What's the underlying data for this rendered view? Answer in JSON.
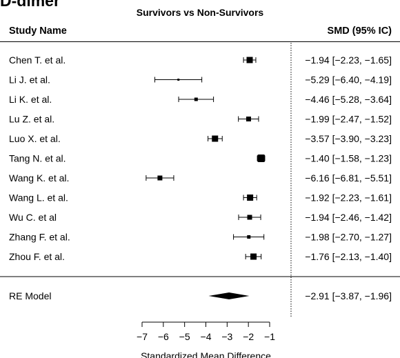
{
  "header": {
    "title": "D-dimer",
    "subtitle": "Survivors vs Non-Survivors",
    "col_study": "Study Name",
    "col_effect": "SMD (95% IC)"
  },
  "chart_data": {
    "type": "forest",
    "title": "D-dimer",
    "subtitle": "Survivors vs Non-Survivors",
    "xlabel": "Standardized Mean Difference",
    "xlim": [
      -7,
      -1
    ],
    "xticks": [
      -7,
      -6,
      -5,
      -4,
      -3,
      -2,
      -1
    ],
    "xtick_labels": [
      "−7",
      "−6",
      "−5",
      "−4",
      "−3",
      "−2",
      "−1"
    ],
    "reference_line": 0,
    "studies": [
      {
        "name": "Chen T. et al.",
        "smd": -1.94,
        "lo": -2.23,
        "hi": -1.65,
        "weight_rank": 4,
        "label": "−1.94 [−2.23, −1.65]"
      },
      {
        "name": "Li J. et al.",
        "smd": -5.29,
        "lo": -6.4,
        "hi": -4.19,
        "weight_rank": 1,
        "label": "−5.29 [−6.40, −4.19]"
      },
      {
        "name": "Li K. et al.",
        "smd": -4.46,
        "lo": -5.28,
        "hi": -3.64,
        "weight_rank": 2,
        "label": "−4.46 [−5.28, −3.64]"
      },
      {
        "name": "Lu Z. et al.",
        "smd": -1.99,
        "lo": -2.47,
        "hi": -1.52,
        "weight_rank": 3,
        "label": "−1.99 [−2.47, −1.52]"
      },
      {
        "name": "Luo X. et al.",
        "smd": -3.57,
        "lo": -3.9,
        "hi": -3.23,
        "weight_rank": 4,
        "label": "−3.57 [−3.90, −3.23]"
      },
      {
        "name": "Tang N. et al.",
        "smd": -1.4,
        "lo": -1.58,
        "hi": -1.23,
        "weight_rank": 5,
        "label": "−1.40 [−1.58, −1.23]"
      },
      {
        "name": "Wang K. et al.",
        "smd": -6.16,
        "lo": -6.81,
        "hi": -5.51,
        "weight_rank": 3,
        "label": "−6.16 [−6.81, −5.51]"
      },
      {
        "name": "Wang L. et al.",
        "smd": -1.92,
        "lo": -2.23,
        "hi": -1.61,
        "weight_rank": 4,
        "label": "−1.92 [−2.23, −1.61]"
      },
      {
        "name": "Wu C. et al",
        "smd": -1.94,
        "lo": -2.46,
        "hi": -1.42,
        "weight_rank": 3,
        "label": "−1.94 [−2.46, −1.42]"
      },
      {
        "name": "Zhang F. et al.",
        "smd": -1.98,
        "lo": -2.7,
        "hi": -1.27,
        "weight_rank": 2,
        "label": "−1.98 [−2.70, −1.27]"
      },
      {
        "name": "Zhou F. et al.",
        "smd": -1.76,
        "lo": -2.13,
        "hi": -1.4,
        "weight_rank": 4,
        "label": "−1.76 [−2.13, −1.40]"
      }
    ],
    "summary": {
      "name": "RE Model",
      "smd": -2.91,
      "lo": -3.87,
      "hi": -1.96,
      "label": "−2.91 [−3.87, −1.96]"
    }
  }
}
